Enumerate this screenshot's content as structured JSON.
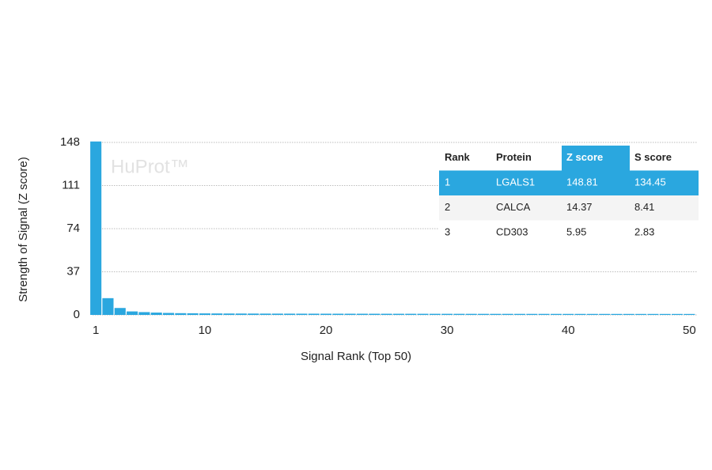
{
  "chart_data": {
    "type": "bar",
    "watermark": "HuProt™",
    "x_label": "Signal Rank (Top 50)",
    "y_label": "Strength of Signal (Z score)",
    "color": "#2aa7df",
    "grid": true,
    "x": [
      1,
      2,
      3,
      4,
      5,
      6,
      7,
      8,
      9,
      10,
      11,
      12,
      13,
      14,
      15,
      16,
      17,
      18,
      19,
      20,
      21,
      22,
      23,
      24,
      25,
      26,
      27,
      28,
      29,
      30,
      31,
      32,
      33,
      34,
      35,
      36,
      37,
      38,
      39,
      40,
      41,
      42,
      43,
      44,
      45,
      46,
      47,
      48,
      49,
      50
    ],
    "values": [
      148.81,
      14.37,
      5.95,
      3.0,
      2.4,
      2.0,
      1.7,
      1.5,
      1.4,
      1.3,
      1.25,
      1.2,
      1.18,
      1.15,
      1.12,
      1.1,
      1.08,
      1.06,
      1.05,
      1.04,
      1.03,
      1.02,
      1.01,
      1.0,
      0.99,
      0.98,
      0.97,
      0.96,
      0.95,
      0.94,
      0.93,
      0.92,
      0.91,
      0.9,
      0.9,
      0.89,
      0.88,
      0.88,
      0.87,
      0.86,
      0.86,
      0.85,
      0.85,
      0.84,
      0.84,
      0.83,
      0.83,
      0.82,
      0.82,
      0.81
    ],
    "xlim": [
      0.5,
      50.5
    ],
    "xticks": [
      1,
      10,
      20,
      30,
      40,
      50
    ],
    "ylim": [
      0,
      148
    ],
    "yticks": [
      0,
      37,
      74,
      111,
      148
    ],
    "table": {
      "columns": [
        "Rank",
        "Protein",
        "Z score",
        "S score"
      ],
      "rows": [
        [
          1,
          "LGALS1",
          148.81,
          134.45
        ],
        [
          2,
          "CALCA",
          14.37,
          8.41
        ],
        [
          3,
          "CD303",
          5.95,
          2.83
        ]
      ]
    }
  }
}
